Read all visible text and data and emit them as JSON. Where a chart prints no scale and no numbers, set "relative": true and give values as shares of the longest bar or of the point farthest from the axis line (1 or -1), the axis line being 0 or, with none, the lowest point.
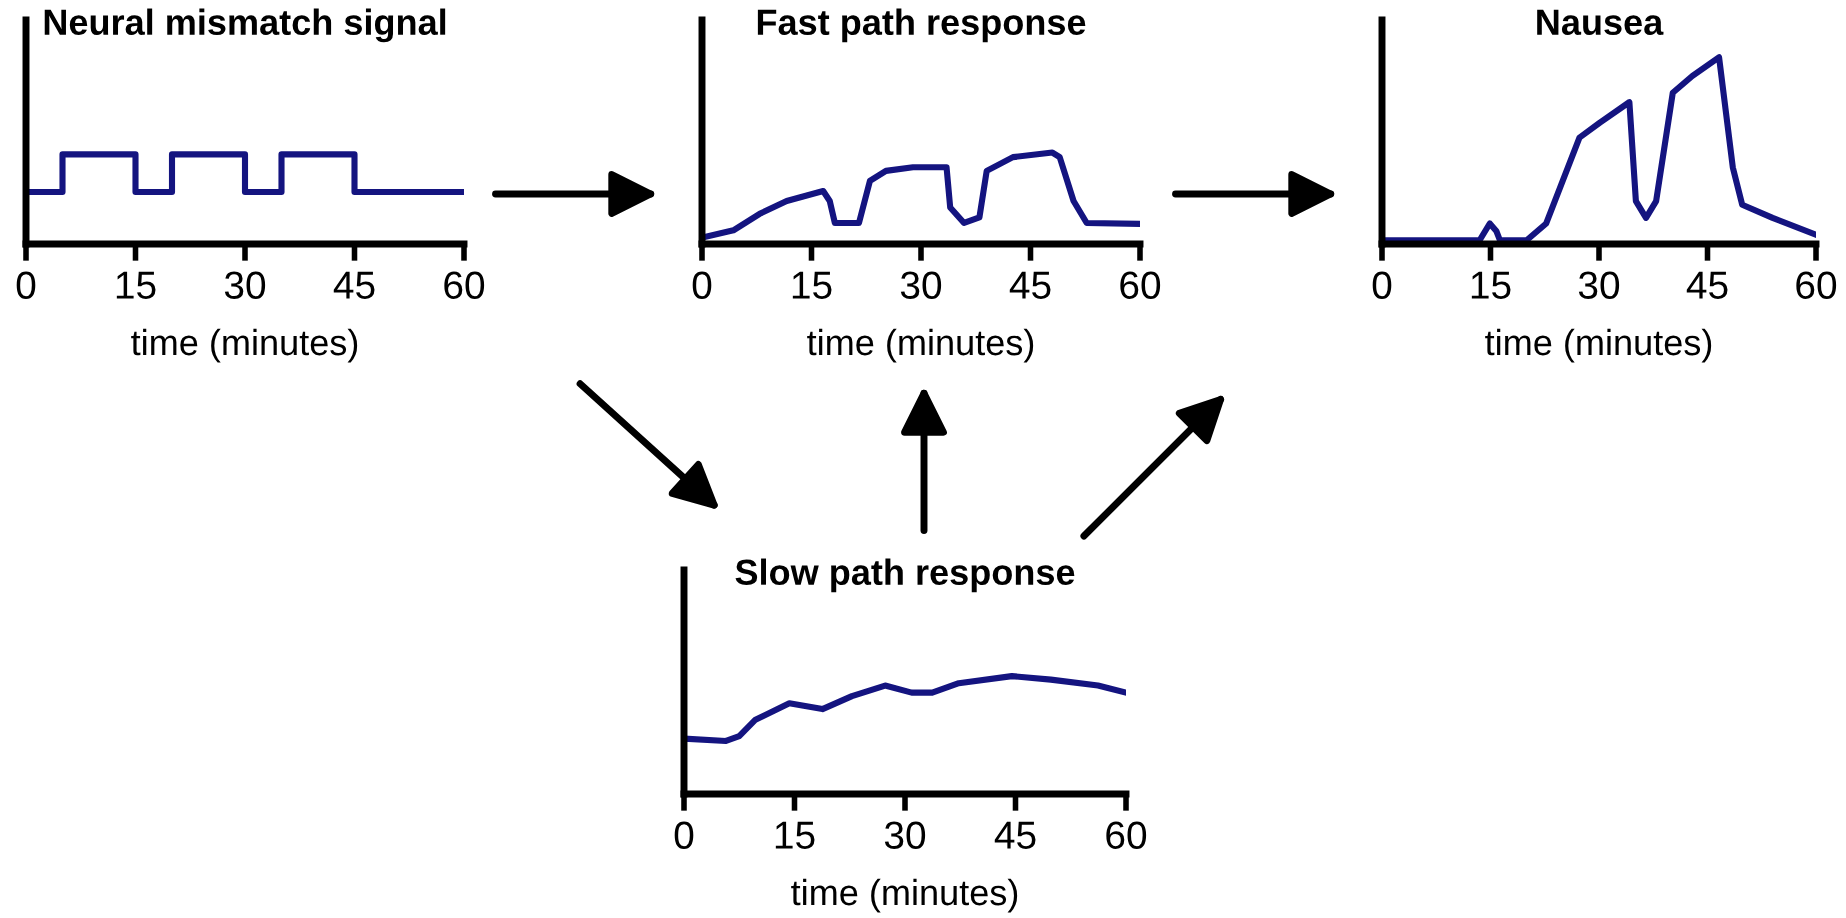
{
  "chart_data": [
    {
      "type": "step",
      "title": "Neural mismatch signal",
      "xlabel": "time (minutes)",
      "relative": true,
      "color": "#141480",
      "xlim": [
        0,
        60
      ],
      "xticks": [
        0,
        15,
        30,
        45,
        60
      ],
      "tick_labels": "x",
      "x": [
        0,
        5,
        15,
        20,
        30,
        35,
        45,
        60
      ],
      "values": [
        0.58,
        1,
        0.58,
        1,
        0.58,
        1,
        0.58,
        0.58
      ]
    },
    {
      "type": "line",
      "title": "Fast path response",
      "xlabel": "time (minutes)",
      "relative": true,
      "color": "#141480",
      "xlim": [
        0,
        60
      ],
      "xticks": [
        0,
        15,
        30,
        45,
        60
      ],
      "tick_labels": "x",
      "x": [
        0,
        4.3,
        7.9,
        11.6,
        16.6,
        17.5,
        18.2,
        21.5,
        23,
        25.2,
        28.9,
        33.5,
        34,
        35.9,
        38,
        39,
        42.6,
        48,
        49,
        50.9,
        52.7,
        60
      ],
      "values": [
        0.07,
        0.15,
        0.33,
        0.47,
        0.58,
        0.47,
        0.23,
        0.23,
        0.69,
        0.8,
        0.84,
        0.84,
        0.4,
        0.23,
        0.29,
        0.8,
        0.95,
        1,
        0.95,
        0.47,
        0.23,
        0.22
      ]
    },
    {
      "type": "line",
      "title": "Nausea",
      "xlabel": "time (minutes)",
      "relative": true,
      "color": "#141480",
      "xlim": [
        0,
        60
      ],
      "xticks": [
        0,
        15,
        30,
        45,
        60
      ],
      "tick_labels": "x",
      "x": [
        0,
        13.5,
        14.9,
        15.8,
        16.3,
        20,
        22.7,
        27.3,
        30.1,
        34.2,
        35.1,
        36.5,
        37.9,
        40.2,
        42.9,
        46.6,
        48.5,
        49.8,
        54,
        60
      ],
      "values": [
        0.02,
        0.02,
        0.11,
        0.07,
        0.02,
        0.02,
        0.11,
        0.57,
        0.65,
        0.76,
        0.23,
        0.14,
        0.23,
        0.81,
        0.9,
        1,
        0.41,
        0.21,
        0.14,
        0.05
      ]
    },
    {
      "type": "line",
      "title": "Slow path response",
      "xlabel": "time (minutes)",
      "relative": true,
      "color": "#141480",
      "xlim": [
        0,
        60
      ],
      "xticks": [
        0,
        15,
        30,
        45,
        60
      ],
      "tick_labels": "x",
      "x": [
        0,
        5.7,
        7.5,
        9.7,
        14.3,
        18.8,
        22.8,
        27.3,
        30.9,
        33.7,
        37.3,
        44.5,
        49.8,
        56.2,
        60
      ],
      "values": [
        0.47,
        0.45,
        0.49,
        0.63,
        0.77,
        0.72,
        0.83,
        0.92,
        0.86,
        0.86,
        0.94,
        1,
        0.97,
        0.92,
        0.86
      ]
    }
  ]
}
